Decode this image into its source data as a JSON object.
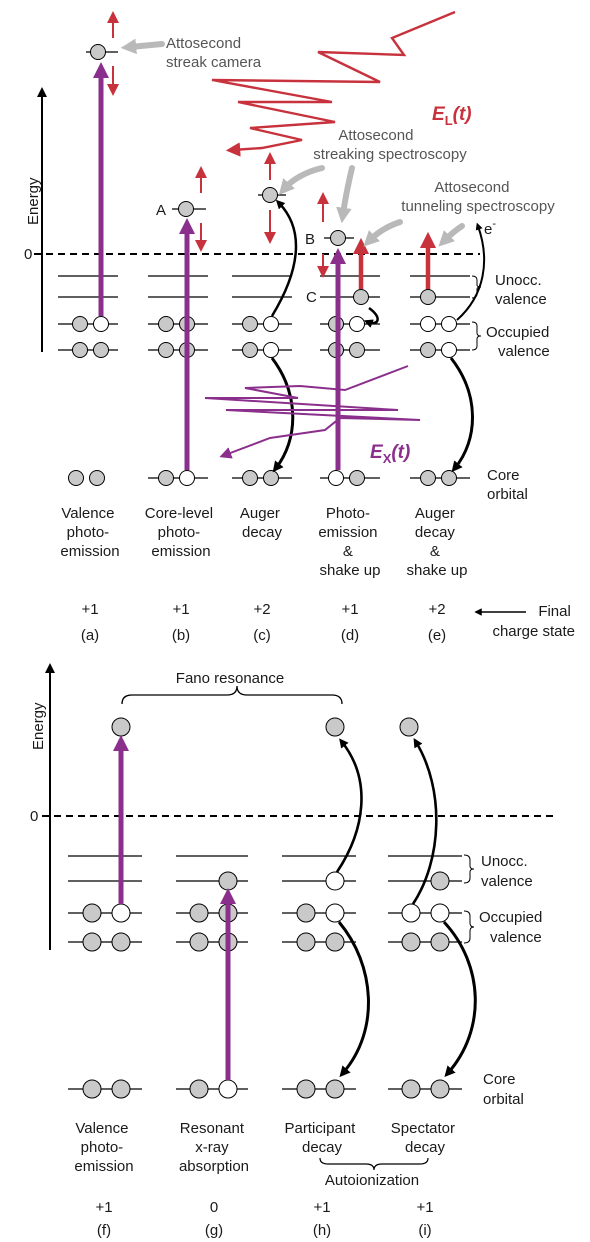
{
  "colors": {
    "red": "#c8323c",
    "purple": "#8a2f8c",
    "grey_arrow": "#b9b9b9",
    "electron": "#c9c9c9"
  },
  "top": {
    "energy_axis": "Energy",
    "zero": "0",
    "attosecond_streak_camera": [
      "Attosecond",
      "streak camera"
    ],
    "attosecond_streaking_spectroscopy": [
      "Attosecond",
      "streaking spectroscopy"
    ],
    "attosecond_tunneling_spectroscopy": [
      "Attosecond",
      "tunneling spectroscopy"
    ],
    "el_field": {
      "main": "E",
      "sub": "L",
      "arg": "(t)"
    },
    "ex_field": {
      "main": "E",
      "sub": "X",
      "arg": "(t)"
    },
    "electron_label": {
      "main": "e",
      "sup": "-"
    },
    "point_labels": {
      "a": "A",
      "b": "B",
      "c": "C"
    },
    "unocc_valence": [
      "Unocc.",
      "valence"
    ],
    "occupied_valence": [
      "Occupied",
      "valence"
    ],
    "core_orbital": [
      "Core",
      "orbital"
    ],
    "processes": [
      [
        "Valence",
        "photo-",
        "emission"
      ],
      [
        "Core-level",
        "photo-",
        "emission"
      ],
      [
        "Auger",
        "decay"
      ],
      [
        "Photo-",
        "emission",
        "&",
        "shake up"
      ],
      [
        "Auger",
        "decay",
        "&",
        "shake up"
      ]
    ],
    "charges": [
      "+1",
      "+1",
      "+2",
      "+1",
      "+2"
    ],
    "letters": [
      "(a)",
      "(b)",
      "(c)",
      "(d)",
      "(e)"
    ],
    "final_charge_state": [
      "Final",
      "charge state"
    ]
  },
  "bottom": {
    "energy_axis": "Energy",
    "zero": "0",
    "fano_resonance": "Fano resonance",
    "unocc_valence": [
      "Unocc.",
      "valence"
    ],
    "occupied_valence": [
      "Occupied",
      "valence"
    ],
    "core_orbital": [
      "Core",
      "orbital"
    ],
    "processes": [
      [
        "Valence",
        "photo-",
        "emission"
      ],
      [
        "Resonant",
        "x-ray",
        "absorption"
      ],
      [
        "Participant",
        "decay"
      ],
      [
        "Spectator",
        "decay"
      ]
    ],
    "autoionization": "Autoionization",
    "charges": [
      "+1",
      "0",
      "+1",
      "+1"
    ],
    "letters": [
      "(f)",
      "(g)",
      "(h)",
      "(i)"
    ]
  }
}
